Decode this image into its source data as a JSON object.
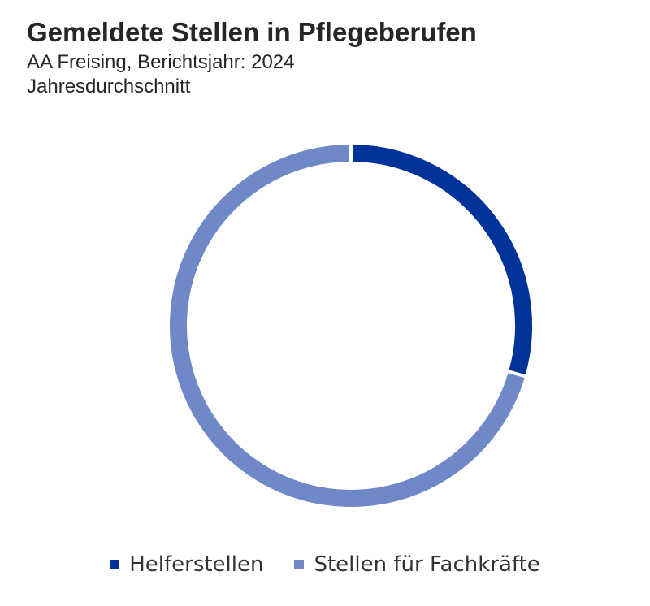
{
  "header": {
    "title": "Gemeldete Stellen in Pflegeberufen",
    "subtitle_line1": "AA Freising, Berichtsjahr: 2024",
    "subtitle_line2": "Jahresdurchschnitt"
  },
  "chart_data": {
    "type": "pie",
    "variant": "donut",
    "title": "Gemeldete Stellen in Pflegeberufen",
    "subtitle": "AA Freising, Berichtsjahr: 2024 – Jahresdurchschnitt",
    "categories": [
      "Helferstellen",
      "Stellen für Fachkräfte"
    ],
    "values": [
      29.5,
      70.5
    ],
    "unit": "percent of total (estimated from slice angles)",
    "colors": [
      "#003399",
      "#6f88c8"
    ],
    "legend": {
      "placement": "bottom",
      "entries": [
        "Helferstellen",
        "Stellen für Fachkräfte"
      ]
    },
    "data_labels": false
  }
}
